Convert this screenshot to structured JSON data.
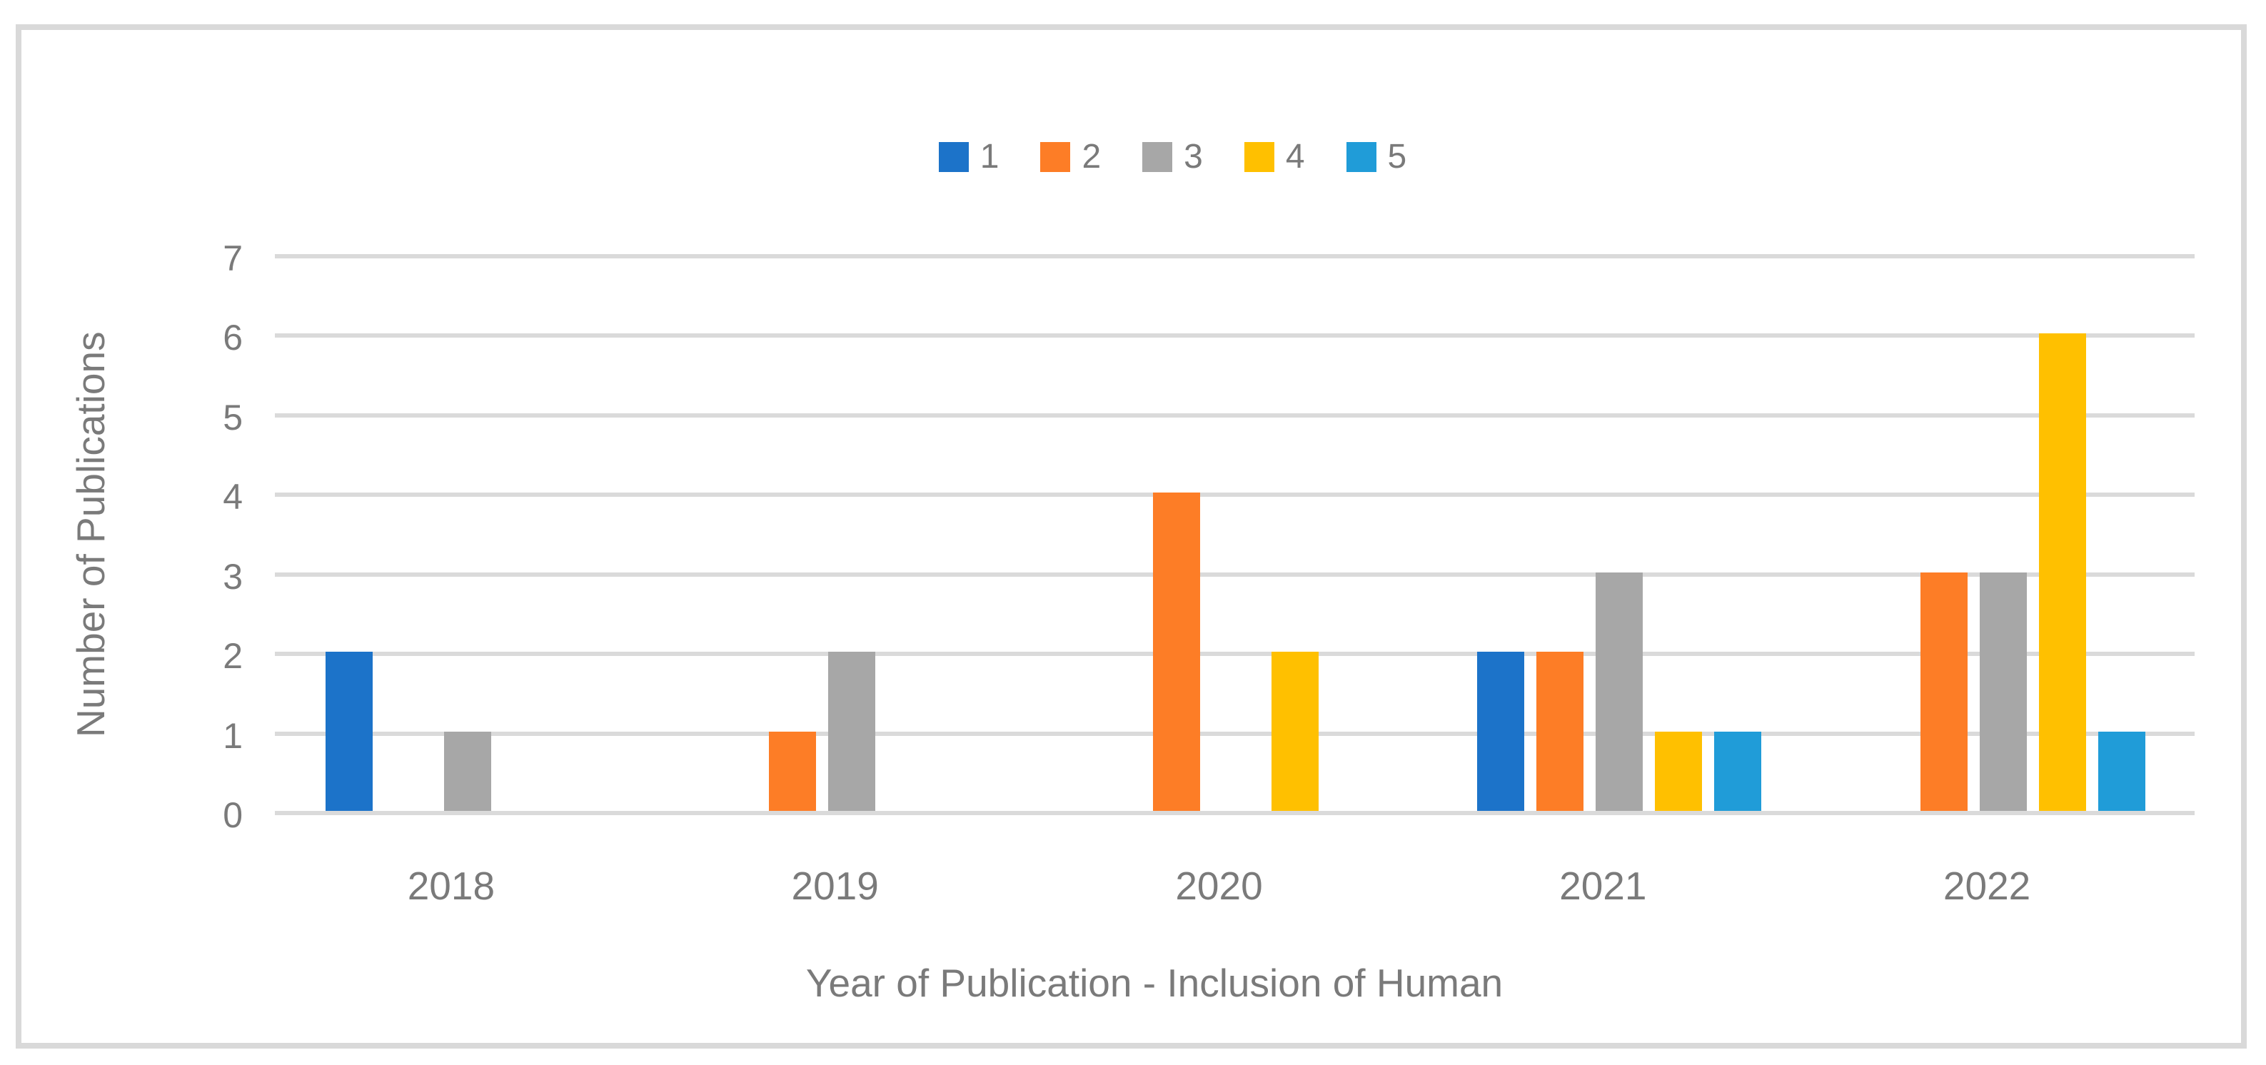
{
  "chart_data": {
    "type": "bar",
    "title": "",
    "xlabel": "Year of Publication - Inclusion of Human",
    "ylabel": "Number of Publications",
    "categories": [
      "2018",
      "2019",
      "2020",
      "2021",
      "2022"
    ],
    "series": [
      {
        "name": "1",
        "color": "#1C73C9",
        "values": [
          2,
          0,
          0,
          2,
          0
        ]
      },
      {
        "name": "2",
        "color": "#FD7D26",
        "values": [
          0,
          1,
          4,
          2,
          3
        ]
      },
      {
        "name": "3",
        "color": "#A7A7A7",
        "values": [
          1,
          2,
          0,
          3,
          3
        ]
      },
      {
        "name": "4",
        "color": "#FFC000",
        "values": [
          0,
          0,
          2,
          1,
          6
        ]
      },
      {
        "name": "5",
        "color": "#209CD8",
        "values": [
          0,
          0,
          0,
          1,
          1
        ]
      }
    ],
    "ylim": [
      0,
      7
    ],
    "yticks": [
      0,
      1,
      2,
      3,
      4,
      5,
      6,
      7
    ],
    "grid": true,
    "legend_position": "top-center",
    "colors": {
      "gridline": "#DADADA",
      "axis_text": "#7A7A7A",
      "frame_border": "#D9D9D9",
      "background": "#FFFFFF"
    }
  }
}
